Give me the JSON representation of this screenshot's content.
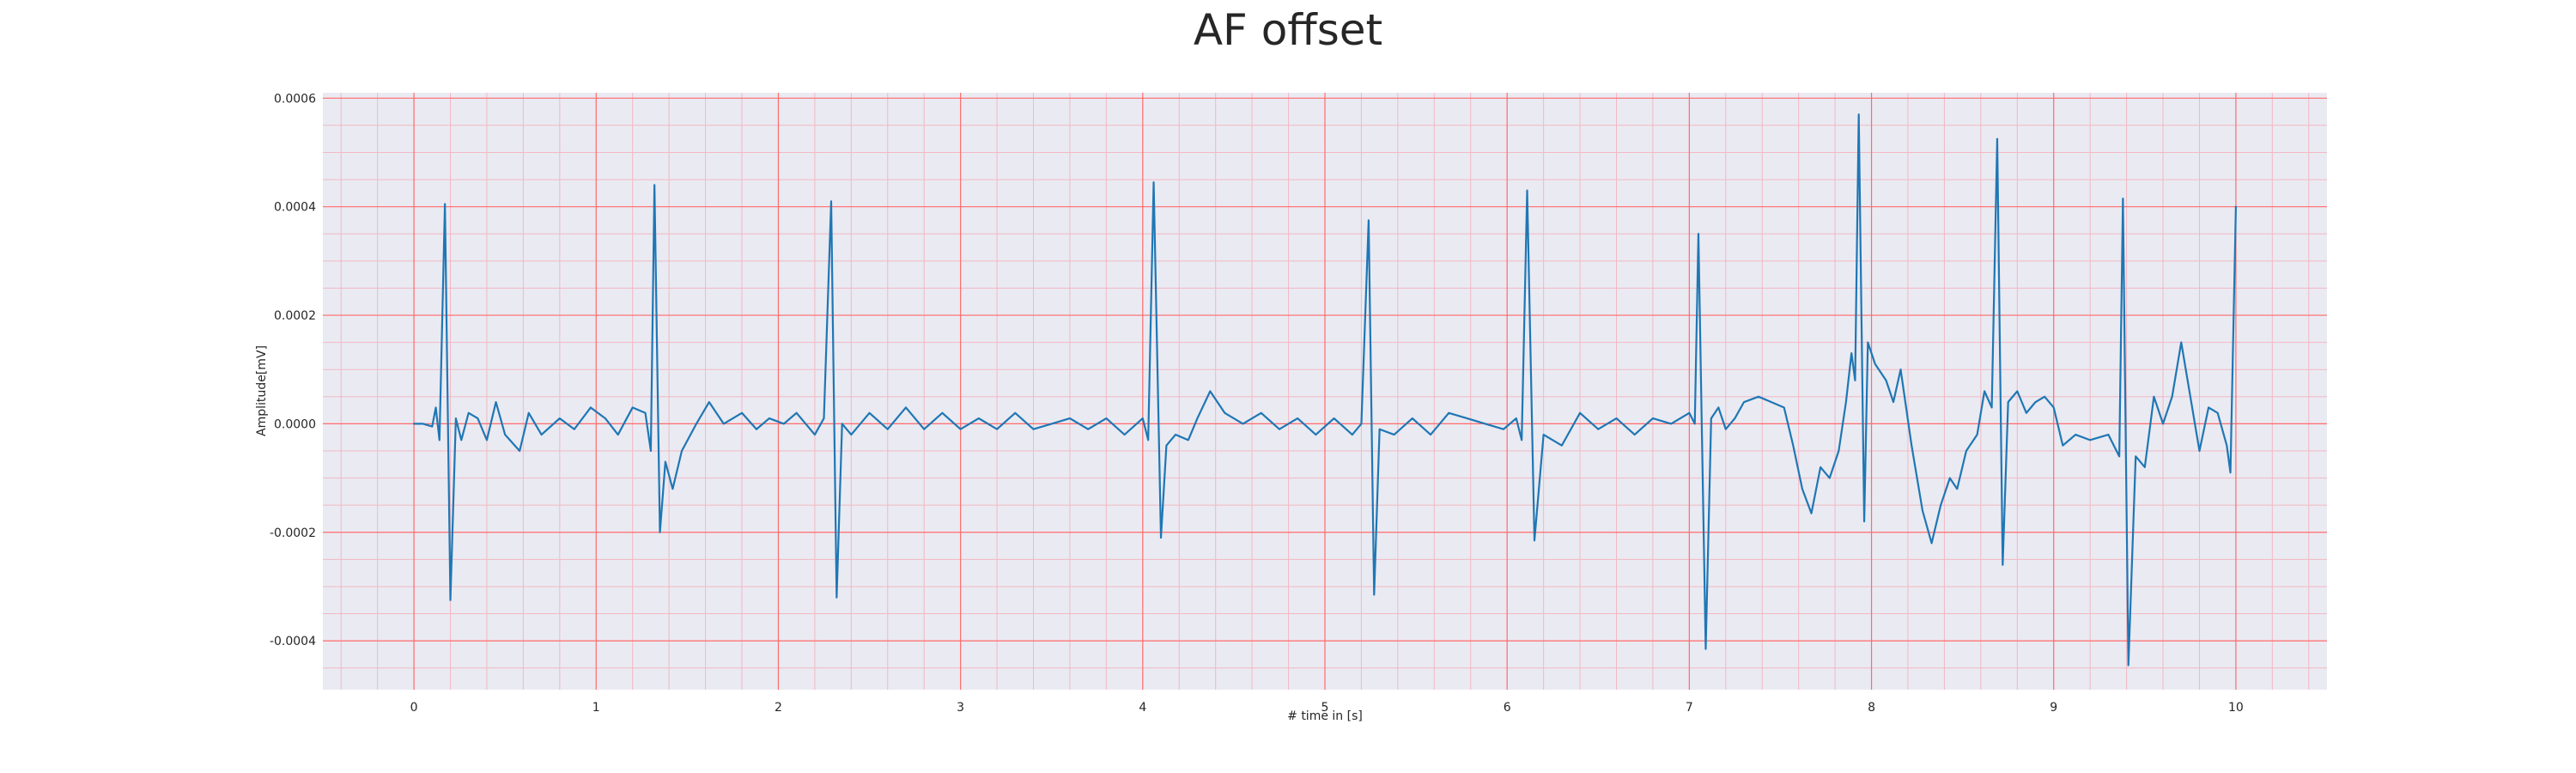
{
  "chart_data": {
    "type": "line",
    "title": "AF offset",
    "xlabel": "# time in [s]",
    "ylabel": "Amplitude[mV]",
    "xlim": [
      -0.5,
      10.5
    ],
    "ylim": [
      -0.00049,
      0.00061
    ],
    "x_ticks": [
      0,
      1,
      2,
      3,
      4,
      5,
      6,
      7,
      8,
      9,
      10
    ],
    "x_tick_labels": [
      "0",
      "1",
      "2",
      "3",
      "4",
      "5",
      "6",
      "7",
      "8",
      "9",
      "10"
    ],
    "y_ticks": [
      -0.0004,
      -0.0002,
      0.0,
      0.0002,
      0.0004,
      0.0006
    ],
    "y_tick_labels": [
      "-0.0004",
      "-0.0002",
      "0.0000",
      "0.0002",
      "0.0004",
      "0.0006"
    ],
    "grid": true,
    "minor_grid": true,
    "legend": "none",
    "series": [
      {
        "points": [
          [
            0.0,
            0.0
          ],
          [
            0.05,
            0.0
          ],
          [
            0.1,
            -5e-06
          ],
          [
            0.12,
            3e-05
          ],
          [
            0.14,
            -3e-05
          ],
          [
            0.17,
            0.000405
          ],
          [
            0.2,
            -0.000325
          ],
          [
            0.23,
            1e-05
          ],
          [
            0.26,
            -3e-05
          ],
          [
            0.3,
            2e-05
          ],
          [
            0.35,
            1e-05
          ],
          [
            0.4,
            -3e-05
          ],
          [
            0.45,
            4e-05
          ],
          [
            0.5,
            -2e-05
          ],
          [
            0.58,
            -5e-05
          ],
          [
            0.63,
            2e-05
          ],
          [
            0.7,
            -2e-05
          ],
          [
            0.8,
            1e-05
          ],
          [
            0.88,
            -1e-05
          ],
          [
            0.97,
            3e-05
          ],
          [
            1.05,
            1e-05
          ],
          [
            1.12,
            -2e-05
          ],
          [
            1.2,
            3e-05
          ],
          [
            1.27,
            2e-05
          ],
          [
            1.3,
            -5e-05
          ],
          [
            1.32,
            0.00044
          ],
          [
            1.35,
            -0.0002
          ],
          [
            1.38,
            -7e-05
          ],
          [
            1.42,
            -0.00012
          ],
          [
            1.47,
            -5e-05
          ],
          [
            1.55,
            0.0
          ],
          [
            1.62,
            4e-05
          ],
          [
            1.7,
            0.0
          ],
          [
            1.8,
            2e-05
          ],
          [
            1.88,
            -1e-05
          ],
          [
            1.95,
            1e-05
          ],
          [
            2.03,
            0.0
          ],
          [
            2.1,
            2e-05
          ],
          [
            2.2,
            -2e-05
          ],
          [
            2.25,
            1e-05
          ],
          [
            2.29,
            0.00041
          ],
          [
            2.32,
            -0.00032
          ],
          [
            2.35,
            0.0
          ],
          [
            2.4,
            -2e-05
          ],
          [
            2.5,
            2e-05
          ],
          [
            2.6,
            -1e-05
          ],
          [
            2.7,
            3e-05
          ],
          [
            2.8,
            -1e-05
          ],
          [
            2.9,
            2e-05
          ],
          [
            3.0,
            -1e-05
          ],
          [
            3.1,
            1e-05
          ],
          [
            3.2,
            -1e-05
          ],
          [
            3.3,
            2e-05
          ],
          [
            3.4,
            -1e-05
          ],
          [
            3.5,
            0.0
          ],
          [
            3.6,
            1e-05
          ],
          [
            3.7,
            -1e-05
          ],
          [
            3.8,
            1e-05
          ],
          [
            3.9,
            -2e-05
          ],
          [
            4.0,
            1e-05
          ],
          [
            4.03,
            -3e-05
          ],
          [
            4.06,
            0.000445
          ],
          [
            4.1,
            -0.00021
          ],
          [
            4.13,
            -4e-05
          ],
          [
            4.18,
            -2e-05
          ],
          [
            4.25,
            -3e-05
          ],
          [
            4.3,
            1e-05
          ],
          [
            4.37,
            6e-05
          ],
          [
            4.45,
            2e-05
          ],
          [
            4.55,
            0.0
          ],
          [
            4.65,
            2e-05
          ],
          [
            4.75,
            -1e-05
          ],
          [
            4.85,
            1e-05
          ],
          [
            4.95,
            -2e-05
          ],
          [
            5.05,
            1e-05
          ],
          [
            5.15,
            -2e-05
          ],
          [
            5.2,
            0.0
          ],
          [
            5.24,
            0.000375
          ],
          [
            5.27,
            -0.000315
          ],
          [
            5.3,
            -1e-05
          ],
          [
            5.38,
            -2e-05
          ],
          [
            5.48,
            1e-05
          ],
          [
            5.58,
            -2e-05
          ],
          [
            5.68,
            2e-05
          ],
          [
            5.78,
            1e-05
          ],
          [
            5.88,
            0.0
          ],
          [
            5.98,
            -1e-05
          ],
          [
            6.05,
            1e-05
          ],
          [
            6.08,
            -3e-05
          ],
          [
            6.11,
            0.00043
          ],
          [
            6.15,
            -0.000215
          ],
          [
            6.2,
            -2e-05
          ],
          [
            6.3,
            -4e-05
          ],
          [
            6.4,
            2e-05
          ],
          [
            6.5,
            -1e-05
          ],
          [
            6.6,
            1e-05
          ],
          [
            6.7,
            -2e-05
          ],
          [
            6.8,
            1e-05
          ],
          [
            6.9,
            0.0
          ],
          [
            7.0,
            2e-05
          ],
          [
            7.03,
            0.0
          ],
          [
            7.05,
            0.00035
          ],
          [
            7.09,
            -0.000415
          ],
          [
            7.12,
            1e-05
          ],
          [
            7.16,
            3e-05
          ],
          [
            7.2,
            -1e-05
          ],
          [
            7.25,
            1e-05
          ],
          [
            7.3,
            4e-05
          ],
          [
            7.38,
            5e-05
          ],
          [
            7.45,
            4e-05
          ],
          [
            7.52,
            3e-05
          ],
          [
            7.57,
            -4e-05
          ],
          [
            7.62,
            -0.00012
          ],
          [
            7.67,
            -0.000165
          ],
          [
            7.72,
            -8e-05
          ],
          [
            7.77,
            -0.0001
          ],
          [
            7.82,
            -5e-05
          ],
          [
            7.86,
            4e-05
          ],
          [
            7.89,
            0.00013
          ],
          [
            7.91,
            8e-05
          ],
          [
            7.93,
            0.00057
          ],
          [
            7.96,
            -0.00018
          ],
          [
            7.98,
            0.00015
          ],
          [
            8.02,
            0.00011
          ],
          [
            8.08,
            8e-05
          ],
          [
            8.12,
            4e-05
          ],
          [
            8.16,
            0.0001
          ],
          [
            8.22,
            -4e-05
          ],
          [
            8.28,
            -0.00016
          ],
          [
            8.33,
            -0.00022
          ],
          [
            8.38,
            -0.00015
          ],
          [
            8.43,
            -0.0001
          ],
          [
            8.47,
            -0.00012
          ],
          [
            8.52,
            -5e-05
          ],
          [
            8.58,
            -2e-05
          ],
          [
            8.62,
            6e-05
          ],
          [
            8.66,
            3e-05
          ],
          [
            8.69,
            0.000525
          ],
          [
            8.72,
            -0.00026
          ],
          [
            8.75,
            4e-05
          ],
          [
            8.8,
            6e-05
          ],
          [
            8.85,
            2e-05
          ],
          [
            8.9,
            4e-05
          ],
          [
            8.95,
            5e-05
          ],
          [
            9.0,
            3e-05
          ],
          [
            9.05,
            -4e-05
          ],
          [
            9.12,
            -2e-05
          ],
          [
            9.2,
            -3e-05
          ],
          [
            9.3,
            -2e-05
          ],
          [
            9.36,
            -6e-05
          ],
          [
            9.38,
            0.000415
          ],
          [
            9.41,
            -0.000445
          ],
          [
            9.45,
            -6e-05
          ],
          [
            9.5,
            -8e-05
          ],
          [
            9.55,
            5e-05
          ],
          [
            9.6,
            0.0
          ],
          [
            9.65,
            5e-05
          ],
          [
            9.7,
            0.00015
          ],
          [
            9.75,
            5e-05
          ],
          [
            9.8,
            -5e-05
          ],
          [
            9.85,
            3e-05
          ],
          [
            9.9,
            2e-05
          ],
          [
            9.95,
            -4e-05
          ],
          [
            9.97,
            -9e-05
          ],
          [
            10.0,
            0.0004
          ]
        ]
      }
    ]
  },
  "colors": {
    "background": "#ffffff",
    "plot_background": "#eaeaf2",
    "major_grid": "#ff6b6b",
    "minor_grid": "#f2b8c2",
    "line": "#1f77b4",
    "text": "#262626"
  }
}
